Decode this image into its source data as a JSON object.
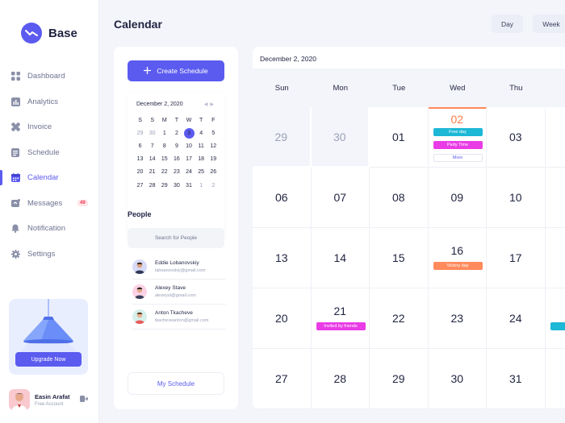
{
  "app": {
    "name": "Base",
    "accent": "#5b5bf0"
  },
  "sidebar": {
    "items": [
      {
        "label": "Dashboard",
        "icon": "grid-icon"
      },
      {
        "label": "Analytics",
        "icon": "bar-chart-icon"
      },
      {
        "label": "Invoice",
        "icon": "invoice-icon"
      },
      {
        "label": "Schedule",
        "icon": "schedule-icon"
      },
      {
        "label": "Calendar",
        "icon": "calendar-icon",
        "active": true
      },
      {
        "label": "Messages",
        "icon": "message-icon",
        "badge": "49"
      },
      {
        "label": "Notification",
        "icon": "bell-icon"
      },
      {
        "label": "Settings",
        "icon": "gear-icon"
      }
    ],
    "upgrade_label": "Upgrade Now",
    "user": {
      "name": "Easin Arafat",
      "role": "Free Account"
    }
  },
  "header": {
    "title": "Calendar",
    "views": [
      "Day",
      "Week"
    ]
  },
  "panel": {
    "create_label": "Create Schedule",
    "mini_calendar": {
      "month_label": "December 2, 2020",
      "weekdays": [
        "S",
        "S",
        "M",
        "T",
        "W",
        "T",
        "F"
      ],
      "weeks": [
        [
          "29",
          "30",
          "1",
          "2",
          "3",
          "4",
          "5"
        ],
        [
          "6",
          "7",
          "8",
          "9",
          "10",
          "11",
          "12"
        ],
        [
          "13",
          "14",
          "15",
          "16",
          "17",
          "18",
          "19"
        ],
        [
          "20",
          "21",
          "22",
          "23",
          "24",
          "25",
          "26"
        ],
        [
          "27",
          "28",
          "29",
          "30",
          "31",
          "1",
          "2"
        ]
      ]
    },
    "people_title": "People",
    "search_placeholder": "Search for People",
    "people": [
      {
        "name": "Eddie Lobanovskiy",
        "email": "laboanovskiy@gmail.com"
      },
      {
        "name": "Alexey Stave",
        "email": "alexeyst@gmail.com"
      },
      {
        "name": "Anton Tkacheve",
        "email": "tkacheveanton@gmail.com"
      }
    ],
    "my_schedule_label": "My Schedule"
  },
  "calendar": {
    "date_label": "December 2, 2020",
    "weekdays": [
      "Sun",
      "Mon",
      "Tue",
      "Wed",
      "Thu"
    ],
    "weeks": [
      [
        "29",
        "30",
        "01",
        "02",
        "03"
      ],
      [
        "06",
        "07",
        "08",
        "09",
        "10"
      ],
      [
        "13",
        "14",
        "15",
        "16",
        "17"
      ],
      [
        "20",
        "21",
        "22",
        "23",
        "24"
      ],
      [
        "27",
        "28",
        "29",
        "30",
        "31"
      ]
    ],
    "events": {
      "free_day": "Free day",
      "party_time": "Party Time",
      "more": "More",
      "victory_day": "Victory day",
      "invited": "Invited by friends"
    },
    "event_colors": {
      "free_day": "#1cb8d6",
      "party_time": "#e93ce6",
      "victory_day": "#ff8a5c",
      "invited": "#e93ce6",
      "cut": "#1cb8d6"
    }
  }
}
